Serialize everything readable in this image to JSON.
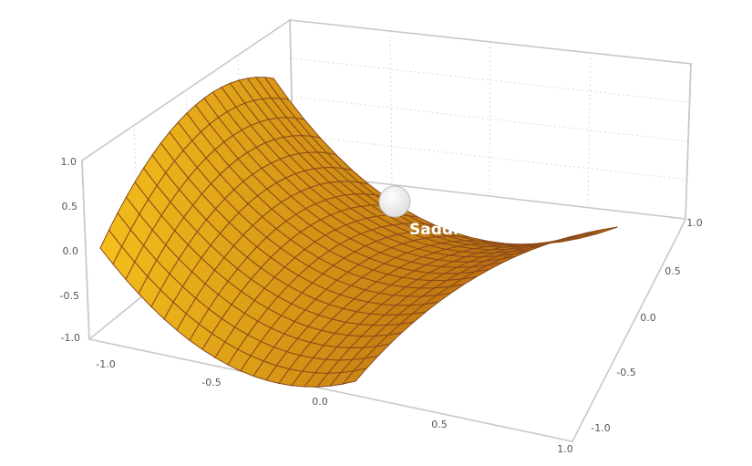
{
  "figure": {
    "annotation": "Saddle point",
    "surface_color": "#f5a316",
    "mesh_color": "#8a4a1a",
    "marker_color": "#f2f2f2"
  },
  "chart_data": {
    "type": "surface",
    "function": "z = x^2 - y^2",
    "x_ticks": [
      "-1.0",
      "-0.5",
      "0.0",
      "0.5",
      "1.0"
    ],
    "y_ticks": [
      "-1.0",
      "-0.5",
      "0.0",
      "0.5",
      "1.0"
    ],
    "z_ticks": [
      "-1.0",
      "-0.5",
      "0.0",
      "0.5",
      "1.0"
    ],
    "xlim": [
      -1,
      1
    ],
    "ylim": [
      -1,
      1
    ],
    "zlim": [
      -1,
      1
    ],
    "mesh": 20,
    "grid": true,
    "annotation_point": {
      "x": 0,
      "y": 0,
      "z": 0,
      "label": "Saddle point"
    }
  }
}
